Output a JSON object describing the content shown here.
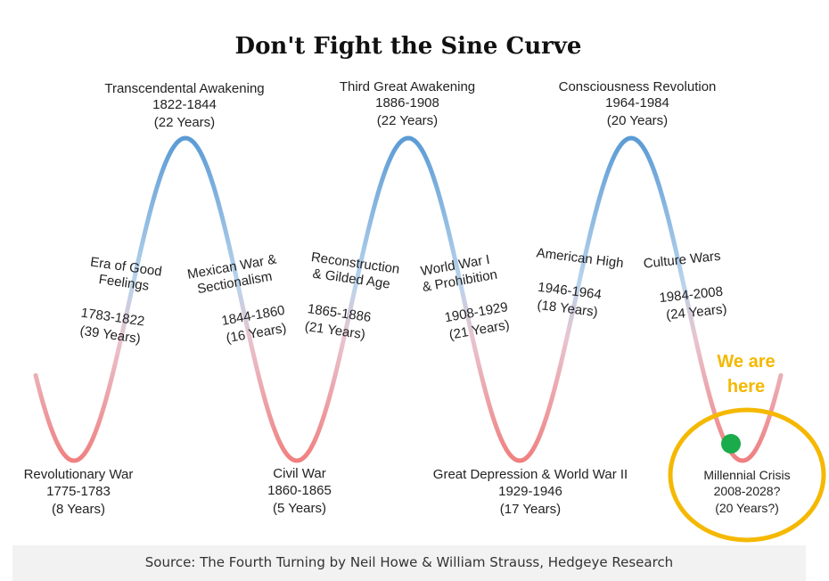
{
  "title": "Don't Fight the Sine Curve",
  "source": "Source: The Fourth Turning by Neil Howe & William Strauss, Hedgeye Research",
  "colors": {
    "peak": "#5b9bd5",
    "trough": "#f08080",
    "marker": "#1aab4b",
    "highlight": "#f5b800"
  },
  "callout": {
    "line1": "We are",
    "line2": "here"
  },
  "peaks": [
    {
      "name": "Transcendental Awakening",
      "years": "1822-1844",
      "duration": "(22 Years)"
    },
    {
      "name": "Third Great Awakening",
      "years": "1886-1908",
      "duration": "(22 Years)"
    },
    {
      "name": "Consciousness Revolution",
      "years": "1964-1984",
      "duration": "(20 Years)"
    }
  ],
  "troughs": [
    {
      "name": "Revolutionary War",
      "years": "1775-1783",
      "duration": "(8 Years)"
    },
    {
      "name": "Civil War",
      "years": "1860-1865",
      "duration": "(5 Years)"
    },
    {
      "name": "Great Depression & World War II",
      "years": "1929-1946",
      "duration": "(17 Years)"
    },
    {
      "name": "Millennial Crisis",
      "years": "2008-2028?",
      "duration": "(20 Years?)"
    }
  ],
  "slopes": [
    {
      "line1": "Era of Good",
      "line2": "Feelings",
      "years": "1783-1822",
      "duration": "(39 Years)"
    },
    {
      "line1": "Mexican War &",
      "line2": "Sectionalism",
      "years": "1844-1860",
      "duration": "(16 Years)"
    },
    {
      "line1": "Reconstruction",
      "line2": "& Gilded Age",
      "years": "1865-1886",
      "duration": "(21 Years)"
    },
    {
      "line1": "World War I",
      "line2": "& Prohibition",
      "years": "1908-1929",
      "duration": "(21 Years)"
    },
    {
      "line1": "American High",
      "line2": "",
      "years": "1946-1964",
      "duration": "(18 Years)"
    },
    {
      "line1": "Culture Wars",
      "line2": "",
      "years": "1984-2008",
      "duration": "(24 Years)"
    }
  ]
}
